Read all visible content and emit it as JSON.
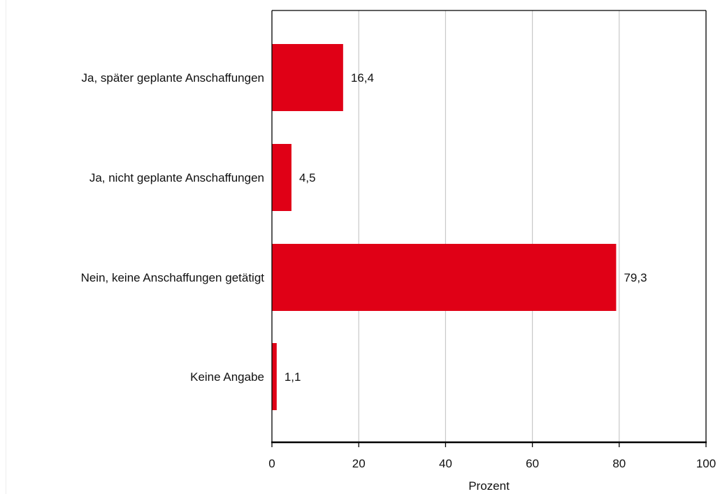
{
  "chart_data": {
    "type": "bar",
    "orientation": "horizontal",
    "categories": [
      "Ja, später geplante Anschaffungen",
      "Ja, nicht geplante Anschaffungen",
      "Nein, keine Anschaffungen getätigt",
      "Keine Angabe"
    ],
    "values": [
      16.4,
      4.5,
      79.3,
      1.1
    ],
    "value_labels": [
      "16,4",
      "4,5",
      "79,3",
      "1,1"
    ],
    "xlabel": "Prozent",
    "xlim": [
      0,
      100
    ],
    "xticks": [
      0,
      20,
      40,
      60,
      80,
      100
    ],
    "grid": "vertical",
    "bar_color": "#e00016"
  }
}
